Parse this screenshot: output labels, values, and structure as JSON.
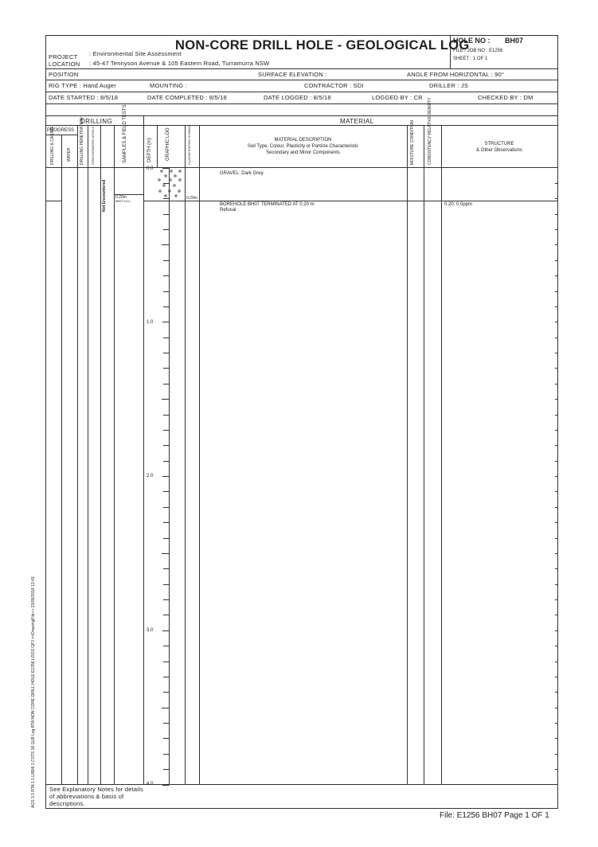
{
  "title": "NON-CORE DRILL HOLE - GEOLOGICAL LOG",
  "hole_no_label": "HOLE NO :",
  "hole_no": "BH07",
  "file_job_no": "FILE / JOB NO : E1256",
  "sheet": "SHEET : 1 OF 1",
  "project_label": "PROJECT",
  "project_value": ": Environmental Site Assessment",
  "location_label": "LOCATION",
  "location_value": ": 45-47 Tennyson Avenue & 105 Eastern Road, Turramurra NSW",
  "position": "POSITION",
  "surface_elevation": "SURFACE ELEVATION :",
  "angle": "ANGLE FROM HORIZONTAL : 90°",
  "rig_type": "RIG TYPE : Hand Auger",
  "mounting": "MOUNTING :",
  "contractor": "CONTRACTOR : SDI",
  "driller": "DRILLER : JS",
  "date_started": "DATE STARTED : 8/5/18",
  "date_completed": "DATE COMPLETED : 8/5/18",
  "date_logged": "DATE LOGGED : 8/5/18",
  "logged_by": "LOGGED BY : CR",
  "checked_by": "CHECKED BY : DM",
  "drilling_header": "DRILLING",
  "material_header": "MATERIAL",
  "progress": "PROGRESS",
  "col_drilling_casing": "DRILLING & CASING",
  "col_water": "WATER",
  "col_drilling_penetration": "DRILLING PENETRATION",
  "col_groundwater_levels": "GROUNDWATER LEVELS",
  "col_samples": "SAMPLES & FIELD TESTS",
  "col_depth": "DEPTH (m)",
  "col_graphic": "GRAPHIC LOG",
  "col_classification": "CLASSIFICATION SYMBOL",
  "material_desc_1": "MATERIAL DESCRIPTION",
  "material_desc_2": "Soil Type, Colour, Plasticity or Particle Characteristic",
  "material_desc_3": "Secondary and Minor Components",
  "col_moisture": "MOISTURE CONDITION",
  "col_consistency": "CONSISTENCY RELATIVE DENSITY",
  "structure_1": "STRUCTURE",
  "structure_2": "& Other Observations",
  "depth_ticks": [
    "0.0",
    "1.0",
    "2.0",
    "3.0",
    "4.0"
  ],
  "groundwater_note": "Not Encountered",
  "sample_label": "0.20m",
  "sample_sub": "BH07 0-0.2",
  "layer_depth_label": "0.20m",
  "layer_1_desc": "GRAVEL: Dark Grey.",
  "termination_1": "BOREHOLE BH07 TERMINATED AT 0.20 m",
  "termination_2": "Refusal",
  "structure_obs": "0.20: 0.0ppm",
  "footer_file": "File: E1256 BH07 Page 1 OF 1",
  "bottom_note": "See Explanatory Notes for details of abbreviations & basis of descriptions.",
  "side_margin": "AGS 3.1 RTA 1.1.LIB06 1 CSTS 18 GLB Log RTA NON CORE DRILL HOLE E1256 LOGS.GPJ <<DrawingFile>> 23/05/2018 12:43"
}
